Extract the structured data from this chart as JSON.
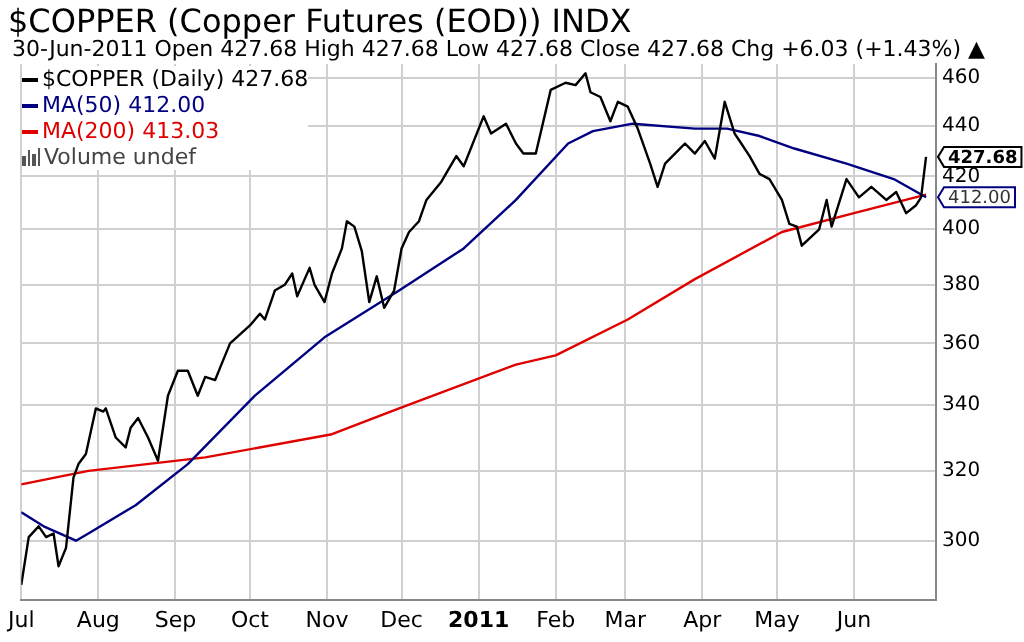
{
  "chart_data": {
    "type": "line",
    "title": "$COPPER (Copper Futures (EOD)) INDX",
    "subtitle": "30-Jun-2011   Open 427.68  High 427.68  Low 427.68  Close 427.68  Chg +6.03 (+1.43%) ▲",
    "log": "y",
    "grid": true,
    "legend": "top left",
    "marker": "none",
    "line_style": "solid",
    "xlim": [
      "2010-07-01",
      "2011-07-04"
    ],
    "xticks": [
      {
        "value": "2010-07-01",
        "label": "Jul"
      },
      {
        "value": "2010-08-01",
        "label": "Aug"
      },
      {
        "value": "2010-09-01",
        "label": "Sep"
      },
      {
        "value": "2010-10-01",
        "label": "Oct"
      },
      {
        "value": "2010-11-01",
        "label": "Nov"
      },
      {
        "value": "2010-12-01",
        "label": "Dec"
      },
      {
        "value": "2011-01-01",
        "label": "2011"
      },
      {
        "value": "2011-02-01",
        "label": "Feb"
      },
      {
        "value": "2011-03-01",
        "label": "Mar"
      },
      {
        "value": "2011-04-01",
        "label": "Apr"
      },
      {
        "value": "2011-05-01",
        "label": "May"
      },
      {
        "value": "2011-06-01",
        "label": "Jun"
      }
    ],
    "ylim": [
      284,
      466
    ],
    "yticks": [
      300,
      320,
      340,
      360,
      380,
      400,
      420,
      440,
      460
    ],
    "series": [
      {
        "name": "$COPPER (Daily) 427.68",
        "color": "#000000",
        "x": [
          "2010-07-01",
          "2010-07-04",
          "2010-07-08",
          "2010-07-11",
          "2010-07-14",
          "2010-07-16",
          "2010-07-19",
          "2010-07-22",
          "2010-07-24",
          "2010-07-27",
          "2010-07-31",
          "2010-08-03",
          "2010-08-04",
          "2010-08-08",
          "2010-08-12",
          "2010-08-14",
          "2010-08-17",
          "2010-08-21",
          "2010-08-25",
          "2010-08-29",
          "2010-09-02",
          "2010-09-06",
          "2010-09-10",
          "2010-09-13",
          "2010-09-17",
          "2010-09-19",
          "2010-09-23",
          "2010-09-27",
          "2010-10-01",
          "2010-10-05",
          "2010-10-07",
          "2010-10-11",
          "2010-10-15",
          "2010-10-18",
          "2010-10-20",
          "2010-10-25",
          "2010-10-27",
          "2010-10-31",
          "2010-11-03",
          "2010-11-07",
          "2010-11-09",
          "2010-11-12",
          "2010-11-15",
          "2010-11-18",
          "2010-11-21",
          "2010-11-24",
          "2010-11-28",
          "2010-12-01",
          "2010-12-04",
          "2010-12-08",
          "2010-12-11",
          "2010-12-17",
          "2010-12-23",
          "2010-12-26",
          "2011-01-03",
          "2011-01-06",
          "2011-01-12",
          "2011-01-16",
          "2011-01-19",
          "2011-01-24",
          "2011-01-30",
          "2011-02-05",
          "2011-02-09",
          "2011-02-13",
          "2011-02-15",
          "2011-02-19",
          "2011-02-23",
          "2011-02-26",
          "2011-03-02",
          "2011-03-06",
          "2011-03-11",
          "2011-03-14",
          "2011-03-17",
          "2011-03-21",
          "2011-03-25",
          "2011-03-29",
          "2011-04-02",
          "2011-04-06",
          "2011-04-10",
          "2011-04-14",
          "2011-04-16",
          "2011-04-20",
          "2011-04-24",
          "2011-04-28",
          "2011-05-03",
          "2011-05-06",
          "2011-05-09",
          "2011-05-11",
          "2011-05-18",
          "2011-05-21",
          "2011-05-23",
          "2011-05-29",
          "2011-06-03",
          "2011-06-08",
          "2011-06-14",
          "2011-06-18",
          "2011-06-22",
          "2011-06-26",
          "2011-06-28",
          "2011-06-30"
        ],
        "values": [
          288,
          301,
          304,
          301,
          302,
          293,
          298,
          318,
          322,
          325,
          339,
          338,
          339,
          330,
          327,
          333,
          336,
          330,
          323,
          343,
          351,
          351,
          343,
          349,
          348,
          352,
          360,
          363,
          366,
          370,
          368,
          378,
          380,
          384,
          376,
          386,
          380,
          374,
          384,
          393,
          403,
          401,
          392,
          374,
          383,
          372,
          378,
          393,
          399,
          403,
          411,
          418,
          428,
          424,
          444,
          437,
          441,
          433,
          429,
          429,
          455,
          458,
          457,
          462,
          454,
          452,
          442,
          450,
          448,
          439,
          425,
          416,
          425,
          429,
          433,
          429,
          434,
          427,
          450,
          437,
          434,
          428,
          421,
          419,
          411,
          402,
          401,
          394,
          400,
          411,
          401,
          419,
          412,
          416,
          411,
          414,
          406,
          409,
          412,
          427.68
        ]
      },
      {
        "name": "MA(50) 412.00",
        "color": "#000080",
        "x": [
          "2010-07-01",
          "2010-07-10",
          "2010-07-23",
          "2010-07-28",
          "2010-08-16",
          "2010-09-06",
          "2010-10-03",
          "2010-10-31",
          "2010-11-30",
          "2010-12-26",
          "2011-01-16",
          "2011-02-06",
          "2011-02-16",
          "2011-03-04",
          "2011-03-29",
          "2011-04-11",
          "2011-04-24",
          "2011-05-08",
          "2011-05-29",
          "2011-06-17",
          "2011-06-30"
        ],
        "values": [
          308,
          304,
          300,
          302,
          310,
          322,
          343,
          362,
          378,
          393,
          411,
          433,
          438,
          441,
          439,
          439,
          436,
          431,
          425,
          419,
          412
        ]
      },
      {
        "name": "MA(200) 413.03",
        "color": "#e00000",
        "x": [
          "2010-07-01",
          "2010-07-28",
          "2010-09-13",
          "2010-11-03",
          "2010-11-30",
          "2011-01-16",
          "2011-02-01",
          "2011-03-02",
          "2011-03-29",
          "2011-05-03",
          "2011-06-01",
          "2011-06-30"
        ],
        "values": [
          316,
          320,
          324,
          331,
          339,
          353,
          356,
          368,
          382,
          399,
          406,
          413.03
        ]
      }
    ],
    "annotations": [
      "Volume undef",
      {
        "text": "427.68",
        "x": "2011-06-30",
        "y": 427.68
      },
      {
        "text": "412.00",
        "x": "2011-06-30",
        "y": 412
      }
    ]
  }
}
